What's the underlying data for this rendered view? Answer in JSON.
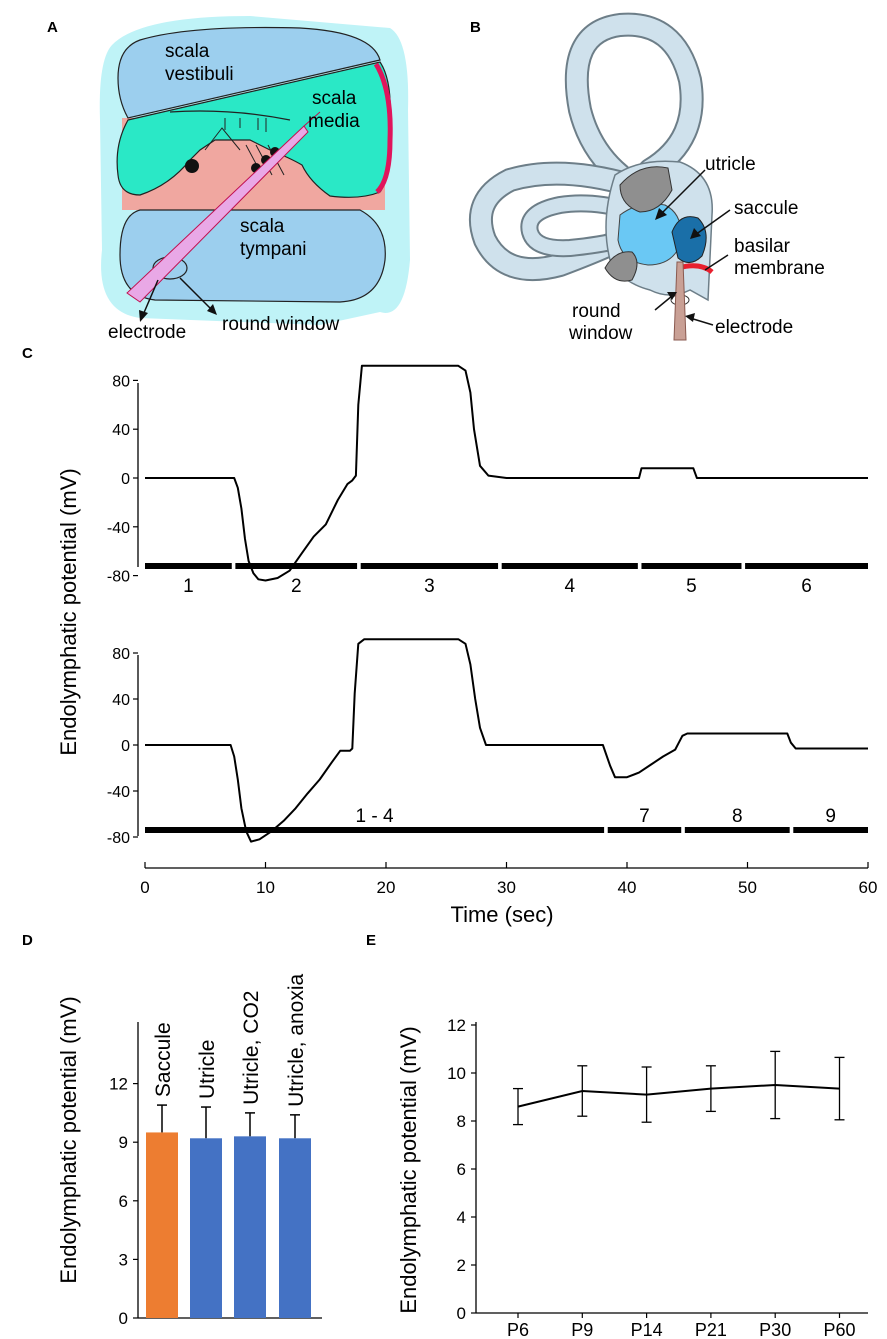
{
  "panels": {
    "A": {
      "letter": "A",
      "labels": {
        "scala_vestibuli_1": "scala",
        "scala_vestibuli_2": "vestibuli",
        "scala_media_1": "scala",
        "scala_media_2": "media",
        "scala_tympani_1": "scala",
        "scala_tympani_2": "tympani",
        "electrode": "electrode",
        "round_window": "round window"
      },
      "colors": {
        "outer": "#bff3f7",
        "vestibuli": "#9ccfee",
        "media": "#2ae8c6",
        "tissue": "#f0a7a0",
        "stria": "#e0145c",
        "electrode": "#e9a8e6"
      }
    },
    "B": {
      "letter": "B",
      "labels": {
        "utricle": "utricle",
        "saccule": "saccule",
        "basilar_1": "basilar",
        "basilar_2": "membrane",
        "round_window_1": "round",
        "round_window_2": "window",
        "electrode": "electrode"
      },
      "colors": {
        "canal": "#cfe1ec",
        "utricle": "#6ac8f4",
        "saccule": "#1a6fa8",
        "macula": "#8f8f8f",
        "basilar": "#e8202e",
        "electrode": "#c9a095"
      }
    },
    "C": {
      "letter": "C"
    },
    "D": {
      "letter": "D"
    },
    "E": {
      "letter": "E"
    }
  },
  "chart_data": [
    {
      "id": "C",
      "type": "line",
      "ylabel": "Endolymphatic potential (mV)",
      "xlabel": "Time (sec)",
      "xlim": [
        0,
        60
      ],
      "xticks": [
        0,
        10,
        20,
        30,
        40,
        50,
        60
      ],
      "ylim": [
        -95,
        100
      ],
      "yticks": [
        80,
        40,
        0,
        -40,
        -80
      ],
      "traces": [
        {
          "name": "upper trace",
          "x": [
            0,
            7.4,
            7.7,
            8.0,
            8.3,
            8.6,
            9.0,
            9.4,
            10.0,
            11.0,
            12.0,
            13.0,
            14.0,
            15.0,
            16.0,
            16.8,
            17.2,
            17.5,
            17.7,
            18.0,
            19.0,
            25.0,
            26.0,
            26.6,
            27.0,
            27.3,
            27.8,
            28.5,
            30.0,
            38.0,
            41.0,
            41.2,
            45.5,
            45.8,
            60.0
          ],
          "y": [
            0,
            0,
            -8,
            -25,
            -50,
            -68,
            -78,
            -83,
            -84,
            -82,
            -76,
            -62,
            -48,
            -38,
            -18,
            -5,
            -2,
            2,
            60,
            92,
            92,
            92,
            92,
            88,
            70,
            40,
            10,
            2,
            0,
            0,
            0,
            8,
            8,
            0,
            0
          ],
          "segments": [
            {
              "label": "1",
              "start": 0,
              "end": 7.2
            },
            {
              "label": "2",
              "start": 7.5,
              "end": 17.6
            },
            {
              "label": "3",
              "start": 17.9,
              "end": 29.3
            },
            {
              "label": "4",
              "start": 29.6,
              "end": 40.9
            },
            {
              "label": "5",
              "start": 41.2,
              "end": 49.5
            },
            {
              "label": "6",
              "start": 49.8,
              "end": 60
            }
          ]
        },
        {
          "name": "lower trace",
          "x": [
            0,
            7.1,
            7.4,
            7.7,
            8.0,
            8.4,
            8.8,
            9.5,
            10.5,
            11.5,
            12.5,
            13.5,
            14.5,
            15.5,
            16.2,
            17.0,
            17.2,
            17.4,
            17.7,
            18.2,
            19.0,
            25.0,
            26.0,
            26.6,
            27.0,
            27.4,
            27.8,
            28.3,
            30.0,
            38.0,
            38.6,
            39.0,
            40.0,
            41.0,
            42.0,
            43.0,
            44.0,
            44.3,
            44.6,
            45.0,
            53.3,
            53.6,
            54.0,
            60.0
          ],
          "y": [
            0,
            0,
            -10,
            -30,
            -55,
            -75,
            -84,
            -82,
            -75,
            -66,
            -55,
            -42,
            -30,
            -15,
            -5,
            -5,
            -3,
            45,
            88,
            92,
            92,
            92,
            92,
            88,
            70,
            40,
            15,
            0,
            0,
            0,
            -18,
            -28,
            -28,
            -24,
            -17,
            -10,
            -4,
            2,
            8,
            10,
            10,
            2,
            -3,
            -3
          ],
          "segments": [
            {
              "label": "1 - 4",
              "start": 0,
              "end": 38.1
            },
            {
              "label": "7",
              "start": 38.4,
              "end": 44.5
            },
            {
              "label": "8",
              "start": 44.8,
              "end": 53.5
            },
            {
              "label": "9",
              "start": 53.8,
              "end": 60
            }
          ]
        }
      ]
    },
    {
      "id": "D",
      "type": "bar",
      "ylabel": "Endolymphatic potential (mV)",
      "ylim": [
        0,
        15
      ],
      "yticks": [
        0,
        3,
        6,
        9,
        12
      ],
      "categories": [
        "Saccule",
        "Utricle",
        "Utricle, CO2",
        "Utricle, anoxia"
      ],
      "values": [
        9.5,
        9.2,
        9.3,
        9.2
      ],
      "errors": [
        1.4,
        1.6,
        1.2,
        1.2
      ],
      "bar_colors": [
        "#ed7d31",
        "#4472c4",
        "#4472c4",
        "#4472c4"
      ]
    },
    {
      "id": "E",
      "type": "line",
      "ylabel": "Endolymphatic potential (mV)",
      "ylim": [
        0,
        12
      ],
      "yticks": [
        0,
        2,
        4,
        6,
        8,
        10,
        12
      ],
      "categories": [
        "P6",
        "P9",
        "P14",
        "P21",
        "P30",
        "P60"
      ],
      "values": [
        8.6,
        9.25,
        9.1,
        9.35,
        9.5,
        9.35
      ],
      "errors": [
        0.75,
        1.05,
        1.15,
        0.95,
        1.4,
        1.3
      ]
    }
  ]
}
